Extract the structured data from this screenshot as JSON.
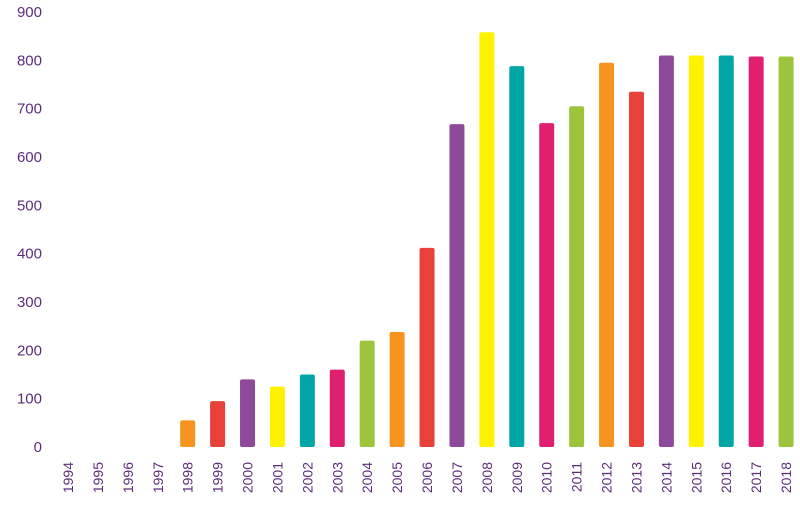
{
  "chart_data": {
    "type": "bar",
    "categories": [
      "1994",
      "1995",
      "1996",
      "1997",
      "1998",
      "1999",
      "2000",
      "2001",
      "2002",
      "2003",
      "2004",
      "2005",
      "2006",
      "2007",
      "2008",
      "2009",
      "2010",
      "2011",
      "2012",
      "2013",
      "2014",
      "2015",
      "2016",
      "2017",
      "2018"
    ],
    "values": [
      0,
      0,
      0,
      0,
      55,
      95,
      140,
      125,
      150,
      160,
      220,
      238,
      412,
      668,
      858,
      788,
      670,
      705,
      795,
      735,
      810,
      810,
      810,
      808,
      808
    ],
    "colors": [
      "#f7941d",
      "#f7941d",
      "#f7941d",
      "#f7941d",
      "#f7941d",
      "#e8413a",
      "#8e4a9a",
      "#fff200",
      "#00a6a6",
      "#e0206e",
      "#9cc43c",
      "#f7941d",
      "#e8413a",
      "#8e4a9a",
      "#fff200",
      "#00a6a6",
      "#e0206e",
      "#9cc43c",
      "#f7941d",
      "#e8413a",
      "#8e4a9a",
      "#fff200",
      "#00a6a6",
      "#e0206e",
      "#9cc43c"
    ],
    "yticks": [
      0,
      100,
      200,
      300,
      400,
      500,
      600,
      700,
      800,
      900
    ],
    "ylim": [
      0,
      900
    ],
    "title": "",
    "xlabel": "",
    "ylabel": "",
    "grid": false,
    "legend": "none",
    "axis_text_color": "#5b2d7a"
  }
}
